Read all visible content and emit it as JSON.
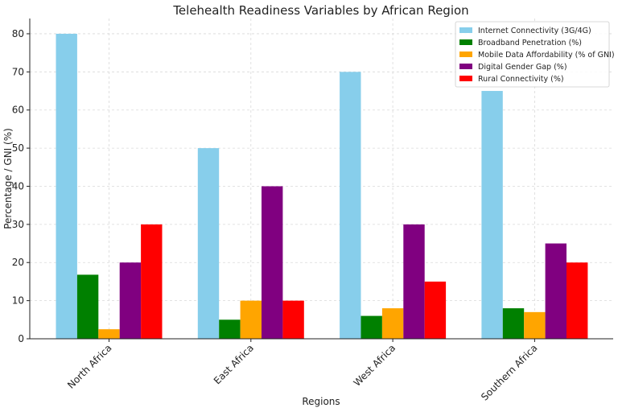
{
  "chart_data": {
    "type": "bar",
    "title": "Telehealth Readiness Variables by African Region",
    "xlabel": "Regions",
    "ylabel": "Percentage / GNI (%)",
    "categories": [
      "North Africa",
      "East Africa",
      "West Africa",
      "Southern Africa"
    ],
    "ylim": [
      0,
      84
    ],
    "yticks": [
      0,
      10,
      20,
      30,
      40,
      50,
      60,
      70,
      80
    ],
    "grid": true,
    "legend_position": "top-right",
    "series": [
      {
        "name": "Internet Connectivity (3G/4G)",
        "color": "#87ceeb",
        "values": [
          80,
          50,
          70,
          65
        ]
      },
      {
        "name": "Broadband Penetration (%)",
        "color": "#008000",
        "values": [
          16.8,
          5,
          6,
          8
        ]
      },
      {
        "name": "Mobile Data Affordability (% of GNI)",
        "color": "#ffa500",
        "values": [
          2.5,
          10,
          8,
          7
        ]
      },
      {
        "name": "Digital Gender Gap (%)",
        "color": "#800080",
        "values": [
          20,
          40,
          30,
          25
        ]
      },
      {
        "name": "Rural Connectivity (%)",
        "color": "#ff0000",
        "values": [
          30,
          10,
          15,
          20
        ]
      }
    ]
  }
}
